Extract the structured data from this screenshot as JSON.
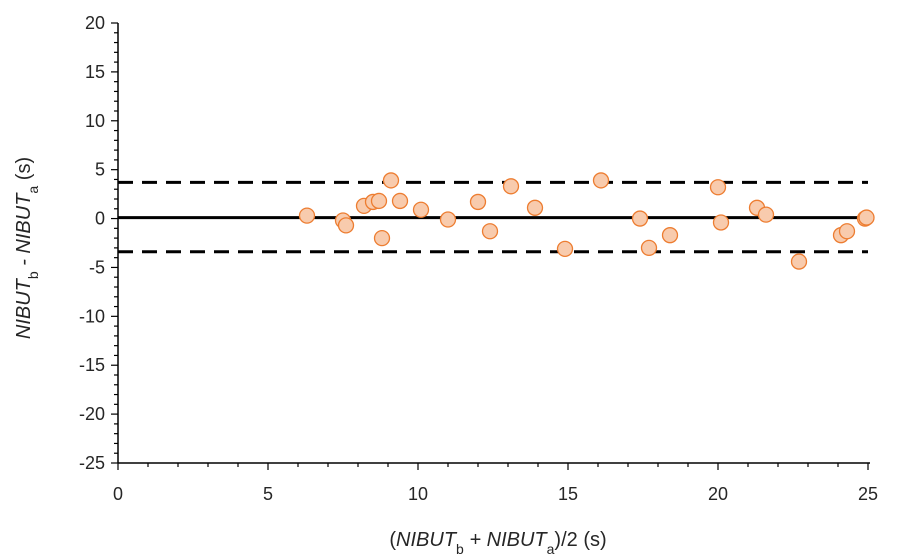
{
  "chart_data": {
    "type": "scatter",
    "title": "",
    "xlabel": {
      "parts": [
        {
          "text": "(",
          "style": "normal"
        },
        {
          "text": "NIBUT",
          "style": "italic"
        },
        {
          "text": "b",
          "style": "sub"
        },
        {
          "text": " + ",
          "style": "italic"
        },
        {
          "text": "NIBUT",
          "style": "italic"
        },
        {
          "text": "a",
          "style": "sub"
        },
        {
          "text": ")/2 (s)",
          "style": "normal"
        }
      ]
    },
    "ylabel": {
      "parts": [
        {
          "text": "NIBUT",
          "style": "italic"
        },
        {
          "text": "b",
          "style": "sub"
        },
        {
          "text": " - ",
          "style": "italic"
        },
        {
          "text": "NIBUT",
          "style": "italic"
        },
        {
          "text": "a",
          "style": "sub"
        },
        {
          "text": " (s)",
          "style": "normal"
        }
      ]
    },
    "xlim": [
      0,
      25
    ],
    "ylim": [
      -25,
      20
    ],
    "x_ticks": [
      0,
      5,
      10,
      15,
      20,
      25
    ],
    "y_ticks": [
      20,
      15,
      10,
      5,
      0,
      -5,
      -10,
      -15,
      -20,
      -25
    ],
    "grid": false,
    "legend": "none",
    "reference_lines": [
      {
        "y": 3.7,
        "style": "dashed"
      },
      {
        "y": 0.1,
        "style": "solid"
      },
      {
        "y": -3.4,
        "style": "dashed"
      }
    ],
    "points": [
      {
        "x": 6.3,
        "y": 0.3
      },
      {
        "x": 7.5,
        "y": -0.2
      },
      {
        "x": 7.6,
        "y": -0.7
      },
      {
        "x": 8.2,
        "y": 1.3
      },
      {
        "x": 8.5,
        "y": 1.7
      },
      {
        "x": 8.7,
        "y": 1.8
      },
      {
        "x": 8.8,
        "y": -2.0
      },
      {
        "x": 9.1,
        "y": 3.9
      },
      {
        "x": 9.4,
        "y": 1.8
      },
      {
        "x": 10.1,
        "y": 0.9
      },
      {
        "x": 11.0,
        "y": -0.1
      },
      {
        "x": 12.0,
        "y": 1.7
      },
      {
        "x": 12.4,
        "y": -1.3
      },
      {
        "x": 13.1,
        "y": 3.3
      },
      {
        "x": 13.9,
        "y": 1.1
      },
      {
        "x": 14.9,
        "y": -3.1
      },
      {
        "x": 16.1,
        "y": 3.9
      },
      {
        "x": 17.4,
        "y": 0.0
      },
      {
        "x": 17.7,
        "y": -3.0
      },
      {
        "x": 18.4,
        "y": -1.7
      },
      {
        "x": 20.0,
        "y": 3.2
      },
      {
        "x": 20.1,
        "y": -0.4
      },
      {
        "x": 21.3,
        "y": 1.1
      },
      {
        "x": 21.6,
        "y": 0.4
      },
      {
        "x": 22.7,
        "y": -4.4
      },
      {
        "x": 24.1,
        "y": -1.7
      },
      {
        "x": 24.3,
        "y": -1.3
      },
      {
        "x": 24.9,
        "y": 0.0
      },
      {
        "x": 24.95,
        "y": 0.1
      }
    ],
    "colors": {
      "marker_fill": "#f8cbad",
      "marker_stroke": "#ed7d31",
      "axis": "#000000",
      "reference_line": "#000000",
      "text": "#262626"
    }
  }
}
